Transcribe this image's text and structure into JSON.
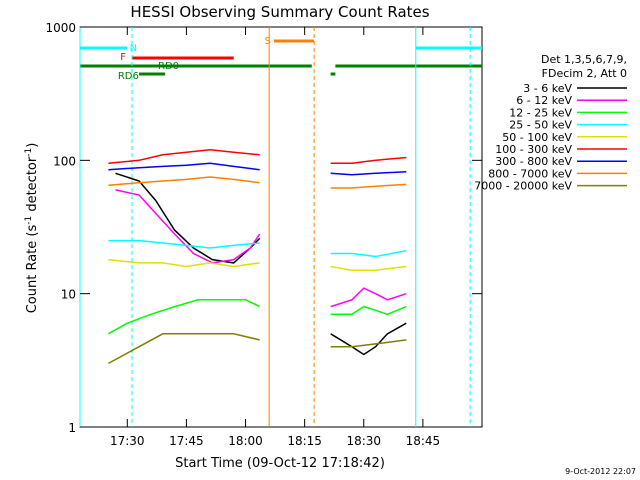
{
  "chart_data": {
    "type": "line",
    "title": "HESSI Observing Summary Count Rates",
    "xlabel": "Start Time (09-Oct-12 17:18:42)",
    "ylabel_main": "Count Rate (s",
    "ylabel_sup1": "-1",
    "ylabel_mid": " detector",
    "ylabel_sup2": "-1",
    "ylabel_end": ")",
    "yscale": "log",
    "ylim": [
      1,
      1000
    ],
    "xlim_minutes": [
      17.3,
      19.0
    ],
    "x_ticks": [
      {
        "label": "17:30",
        "min": 17.5
      },
      {
        "label": "17:45",
        "min": 17.75
      },
      {
        "label": "18:00",
        "min": 18.0
      },
      {
        "label": "18:15",
        "min": 18.25
      },
      {
        "label": "18:30",
        "min": 18.5
      },
      {
        "label": "18:45",
        "min": 18.75
      }
    ],
    "y_ticks": [
      {
        "label": "1",
        "v": 1
      },
      {
        "label": "10",
        "v": 10
      },
      {
        "label": "100",
        "v": 100
      },
      {
        "label": "1000",
        "v": 1000
      }
    ],
    "legend_header": [
      "Det 1,3,5,6,7,9,",
      "FDecim 2, Att 0"
    ],
    "legend_placement": "right",
    "footer_date": "9-Oct-2012 22:07",
    "flags": [
      {
        "label": "N",
        "color": "#00ffff"
      },
      {
        "label": "F",
        "color": "#ff0000"
      },
      {
        "label": "RD0",
        "color": "#008000"
      },
      {
        "label": "RD6",
        "color": "#008000"
      },
      {
        "label": "S",
        "color": "#ff8000"
      }
    ],
    "series": [
      {
        "name": "3 - 6 keV",
        "color": "#000000",
        "seg1": [
          [
            17.45,
            80
          ],
          [
            17.55,
            70
          ],
          [
            17.62,
            50
          ],
          [
            17.7,
            30
          ],
          [
            17.78,
            22
          ],
          [
            17.86,
            18
          ],
          [
            17.95,
            17
          ],
          [
            18.02,
            22
          ],
          [
            18.06,
            26
          ]
        ],
        "seg2": [
          [
            18.36,
            5
          ],
          [
            18.45,
            4
          ],
          [
            18.5,
            3.5
          ],
          [
            18.55,
            4
          ],
          [
            18.6,
            5
          ],
          [
            18.68,
            6
          ]
        ]
      },
      {
        "name": "6 - 12 keV",
        "color": "#ff00ff",
        "seg1": [
          [
            17.45,
            60
          ],
          [
            17.55,
            55
          ],
          [
            17.62,
            40
          ],
          [
            17.7,
            28
          ],
          [
            17.78,
            20
          ],
          [
            17.86,
            17
          ],
          [
            17.95,
            18
          ],
          [
            18.02,
            22
          ],
          [
            18.06,
            28
          ]
        ],
        "seg2": [
          [
            18.36,
            8
          ],
          [
            18.45,
            9
          ],
          [
            18.5,
            11
          ],
          [
            18.55,
            10
          ],
          [
            18.6,
            9
          ],
          [
            18.68,
            10
          ]
        ]
      },
      {
        "name": "12 - 25 keV",
        "color": "#00ff00",
        "seg1": [
          [
            17.42,
            5
          ],
          [
            17.5,
            6
          ],
          [
            17.6,
            7
          ],
          [
            17.7,
            8
          ],
          [
            17.8,
            9
          ],
          [
            17.9,
            9
          ],
          [
            18.0,
            9
          ],
          [
            18.06,
            8
          ]
        ],
        "seg2": [
          [
            18.36,
            7
          ],
          [
            18.45,
            7
          ],
          [
            18.5,
            8
          ],
          [
            18.55,
            7.5
          ],
          [
            18.6,
            7
          ],
          [
            18.68,
            8
          ]
        ]
      },
      {
        "name": "25 - 50 keV",
        "color": "#00ffff",
        "seg1": [
          [
            17.42,
            25
          ],
          [
            17.55,
            25
          ],
          [
            17.65,
            24
          ],
          [
            17.75,
            23
          ],
          [
            17.85,
            22
          ],
          [
            17.95,
            23
          ],
          [
            18.06,
            24
          ]
        ],
        "seg2": [
          [
            18.36,
            20
          ],
          [
            18.45,
            20
          ],
          [
            18.55,
            19
          ],
          [
            18.68,
            21
          ]
        ]
      },
      {
        "name": "50 - 100 keV",
        "color": "#e0e000",
        "seg1": [
          [
            17.42,
            18
          ],
          [
            17.55,
            17
          ],
          [
            17.65,
            17
          ],
          [
            17.75,
            16
          ],
          [
            17.85,
            17
          ],
          [
            17.95,
            16
          ],
          [
            18.06,
            17
          ]
        ],
        "seg2": [
          [
            18.36,
            16
          ],
          [
            18.45,
            15
          ],
          [
            18.55,
            15
          ],
          [
            18.68,
            16
          ]
        ]
      },
      {
        "name": "100 - 300 keV",
        "color": "#ff0000",
        "seg1": [
          [
            17.42,
            95
          ],
          [
            17.55,
            100
          ],
          [
            17.65,
            110
          ],
          [
            17.75,
            115
          ],
          [
            17.85,
            120
          ],
          [
            17.95,
            115
          ],
          [
            18.06,
            110
          ]
        ],
        "seg2": [
          [
            18.36,
            95
          ],
          [
            18.45,
            95
          ],
          [
            18.55,
            100
          ],
          [
            18.68,
            105
          ]
        ]
      },
      {
        "name": "300 - 800 keV",
        "color": "#0000ff",
        "seg1": [
          [
            17.42,
            85
          ],
          [
            17.55,
            88
          ],
          [
            17.65,
            90
          ],
          [
            17.75,
            92
          ],
          [
            17.85,
            95
          ],
          [
            17.95,
            90
          ],
          [
            18.06,
            85
          ]
        ],
        "seg2": [
          [
            18.36,
            80
          ],
          [
            18.45,
            78
          ],
          [
            18.55,
            80
          ],
          [
            18.68,
            82
          ]
        ]
      },
      {
        "name": "800 - 7000 keV",
        "color": "#ff8000",
        "seg1": [
          [
            17.42,
            65
          ],
          [
            17.55,
            68
          ],
          [
            17.65,
            70
          ],
          [
            17.75,
            72
          ],
          [
            17.85,
            75
          ],
          [
            17.95,
            72
          ],
          [
            18.06,
            68
          ]
        ],
        "seg2": [
          [
            18.36,
            62
          ],
          [
            18.45,
            62
          ],
          [
            18.55,
            64
          ],
          [
            18.68,
            66
          ]
        ]
      },
      {
        "name": "7000 - 20000 keV",
        "color": "#808000",
        "seg1": [
          [
            17.42,
            3
          ],
          [
            17.55,
            4
          ],
          [
            17.65,
            5
          ],
          [
            17.75,
            5
          ],
          [
            17.85,
            5
          ],
          [
            17.95,
            5
          ],
          [
            18.06,
            4.5
          ]
        ],
        "seg2": [
          [
            18.36,
            4
          ],
          [
            18.45,
            4
          ],
          [
            18.55,
            4.2
          ],
          [
            18.68,
            4.5
          ]
        ]
      }
    ]
  }
}
